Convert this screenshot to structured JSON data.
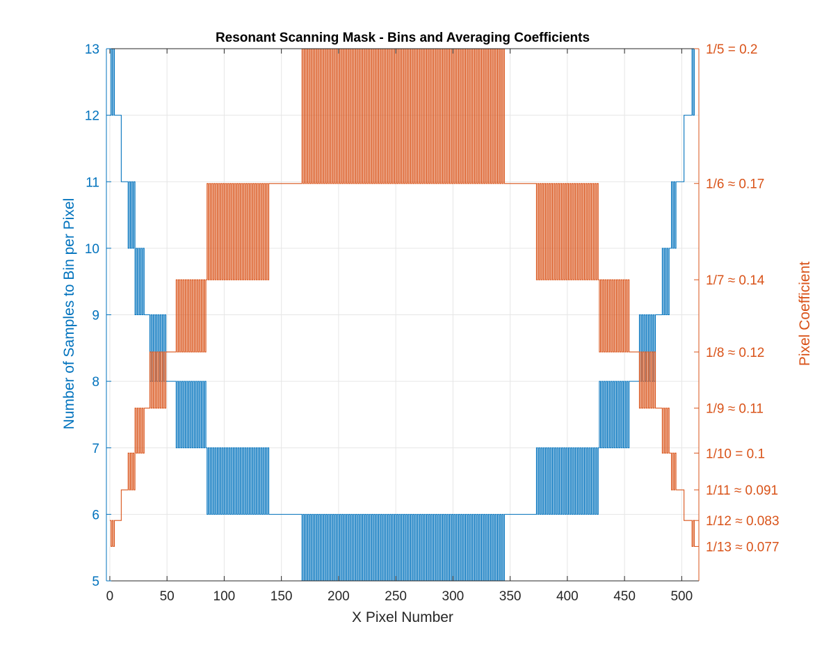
{
  "colors": {
    "left_axis": "#0072BD",
    "right_axis": "#D95319",
    "grid": "#E6E6E6",
    "axes": "#262626",
    "background": "#FFFFFF"
  },
  "chart_data": {
    "type": "line",
    "title": "Resonant Scanning Mask - Bins and Averaging Coefficients",
    "xlabel": "X Pixel Number",
    "ylabel_left": "Number of Samples to Bin per Pixel",
    "ylabel_right": "Pixel Coefficient",
    "xlim": [
      -3,
      515
    ],
    "ylim_left": [
      5,
      13
    ],
    "ylim_right": [
      0.0684,
      0.2
    ],
    "grid": true,
    "x_ticks": [
      0,
      50,
      100,
      150,
      200,
      250,
      300,
      350,
      400,
      450,
      500
    ],
    "x_tick_labels": [
      "0",
      "50",
      "100",
      "150",
      "200",
      "250",
      "300",
      "350",
      "400",
      "450",
      "500"
    ],
    "y_left_ticks": [
      5,
      6,
      7,
      8,
      9,
      10,
      11,
      12,
      13
    ],
    "y_left_tick_labels": [
      "5",
      "6",
      "7",
      "8",
      "9",
      "10",
      "11",
      "12",
      "13"
    ],
    "y_right_ticks": [
      0.2,
      0.16667,
      0.14286,
      0.125,
      0.11111,
      0.1,
      0.09091,
      0.08333,
      0.07692
    ],
    "y_right_tick_labels": [
      "1/5 = 0.2",
      "1/6 ≈ 0.17",
      "1/7 ≈ 0.14",
      "1/8 ≈ 0.12",
      "1/9 ≈ 0.11",
      "1/10 = 0.1",
      "1/11 ≈ 0.091",
      "1/12 ≈ 0.083",
      "1/13 ≈ 0.077"
    ],
    "series": [
      {
        "name": "Number of Samples to Bin per Pixel",
        "axis": "left",
        "description": "Samples binned per pixel for x = 0..511 (stairs), symmetric about x ≈ 256; alternates between adjacent integers in transition zones",
        "segments": [
          {
            "x_start": 0,
            "x_end": 4,
            "pattern": [
              12,
              13
            ]
          },
          {
            "x_start": 4,
            "x_end": 10,
            "pattern": [
              12
            ]
          },
          {
            "x_start": 10,
            "x_end": 16,
            "pattern": [
              11
            ]
          },
          {
            "x_start": 16,
            "x_end": 22,
            "pattern": [
              10,
              11
            ]
          },
          {
            "x_start": 22,
            "x_end": 30,
            "pattern": [
              9,
              10
            ]
          },
          {
            "x_start": 30,
            "x_end": 35,
            "pattern": [
              9
            ]
          },
          {
            "x_start": 35,
            "x_end": 50,
            "pattern": [
              8,
              9
            ]
          },
          {
            "x_start": 50,
            "x_end": 58,
            "pattern": [
              8
            ]
          },
          {
            "x_start": 58,
            "x_end": 85,
            "pattern": [
              7,
              8
            ]
          },
          {
            "x_start": 85,
            "x_end": 140,
            "pattern": [
              6,
              7
            ]
          },
          {
            "x_start": 140,
            "x_end": 168,
            "pattern": [
              6
            ]
          },
          {
            "x_start": 168,
            "x_end": 345,
            "pattern": [
              5,
              6
            ]
          },
          {
            "x_start": 345,
            "x_end": 372,
            "pattern": [
              6
            ]
          },
          {
            "x_start": 372,
            "x_end": 427,
            "pattern": [
              6,
              7
            ]
          },
          {
            "x_start": 427,
            "x_end": 454,
            "pattern": [
              7,
              8
            ]
          },
          {
            "x_start": 454,
            "x_end": 462,
            "pattern": [
              8
            ]
          },
          {
            "x_start": 462,
            "x_end": 477,
            "pattern": [
              8,
              9
            ]
          },
          {
            "x_start": 477,
            "x_end": 482,
            "pattern": [
              9
            ]
          },
          {
            "x_start": 482,
            "x_end": 490,
            "pattern": [
              9,
              10
            ]
          },
          {
            "x_start": 490,
            "x_end": 496,
            "pattern": [
              10,
              11
            ]
          },
          {
            "x_start": 496,
            "x_end": 502,
            "pattern": [
              11
            ]
          },
          {
            "x_start": 502,
            "x_end": 508,
            "pattern": [
              12
            ]
          },
          {
            "x_start": 508,
            "x_end": 512,
            "pattern": [
              12,
              13
            ]
          }
        ]
      },
      {
        "name": "Pixel Coefficient",
        "axis": "right",
        "description": "Averaging coefficient = 1 / (samples per pixel), plotted against the right axis"
      }
    ]
  }
}
